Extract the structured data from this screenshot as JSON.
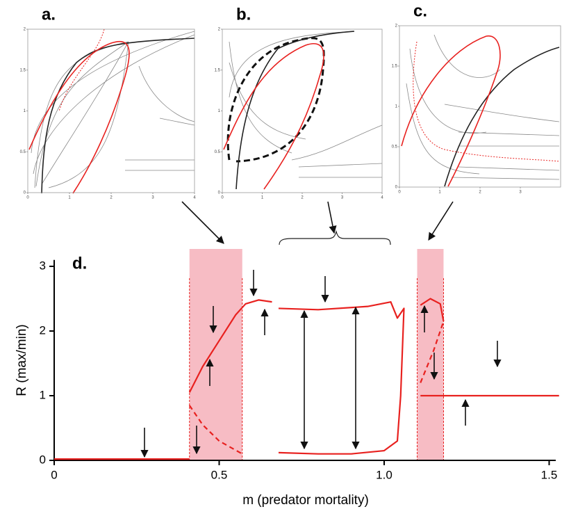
{
  "chart_data": [
    {
      "type": "phase",
      "title": "a.",
      "xlim": [
        0,
        4
      ],
      "xticks": [
        0,
        1,
        2,
        3,
        4
      ],
      "ylim": [
        0,
        2
      ],
      "yticks": [
        0,
        0.5,
        1,
        1.5,
        2
      ]
    },
    {
      "type": "phase",
      "title": "b.",
      "xlim": [
        0,
        4
      ],
      "xticks": [
        0,
        1,
        2,
        3,
        4
      ],
      "ylim": [
        0,
        2
      ],
      "yticks": [
        0,
        0.5,
        1,
        1.5,
        2
      ]
    },
    {
      "type": "phase",
      "title": "c.",
      "xlim": [
        0,
        4
      ],
      "xticks": [
        0,
        1,
        2,
        3
      ],
      "ylim": [
        0,
        2
      ],
      "yticks": [
        0,
        0.5,
        1,
        1.5,
        2
      ]
    },
    {
      "type": "line",
      "title": "d.",
      "x_label": "m (predator mortality)",
      "y_label": "R (max/min)",
      "xlim": [
        0,
        1.52
      ],
      "xticks": [
        0,
        0.5,
        {
          "value": 1,
          "label": "1.0"
        },
        1.5
      ],
      "ylim": [
        0,
        3.1
      ],
      "yticks": [
        0,
        1,
        2,
        3
      ],
      "shaded_ranges": [
        [
          0.41,
          0.57
        ],
        [
          1.1,
          1.18
        ]
      ],
      "shade_color": "#f7bcc4",
      "series": [
        {
          "color": "#e8211f",
          "style": "solid",
          "x": [
            0,
            0.41
          ],
          "values": [
            0.02,
            0.02
          ]
        },
        {
          "color": "#e8211f",
          "style": "solid",
          "x": [
            0.41,
            0.45,
            0.5,
            0.55,
            0.58,
            0.62,
            0.66
          ],
          "values": [
            1.05,
            1.45,
            1.85,
            2.25,
            2.42,
            2.48,
            2.45
          ]
        },
        {
          "color": "#e8211f",
          "style": "dashed",
          "x": [
            0.41,
            0.45,
            0.5,
            0.57
          ],
          "values": [
            0.85,
            0.55,
            0.3,
            0.1
          ]
        },
        {
          "color": "#e8211f",
          "style": "solid",
          "x": [
            0.68,
            0.8,
            0.95,
            1.02,
            1.04,
            1.06,
            1.05,
            1.04,
            1.0,
            0.9,
            0.8,
            0.68
          ],
          "values": [
            2.35,
            2.33,
            2.38,
            2.45,
            2.2,
            2.35,
            1.0,
            0.3,
            0.15,
            0.1,
            0.1,
            0.12
          ]
        },
        {
          "color": "#e8211f",
          "style": "solid",
          "x": [
            1.11,
            1.14,
            1.17,
            1.18
          ],
          "values": [
            2.4,
            2.5,
            2.42,
            2.15
          ]
        },
        {
          "color": "#e8211f",
          "style": "dashed",
          "x": [
            1.11,
            1.15,
            1.18
          ],
          "values": [
            1.2,
            1.7,
            2.15
          ]
        },
        {
          "color": "#e8211f",
          "style": "solid",
          "x": [
            1.11,
            1.53
          ],
          "values": [
            1,
            1
          ]
        }
      ]
    }
  ]
}
